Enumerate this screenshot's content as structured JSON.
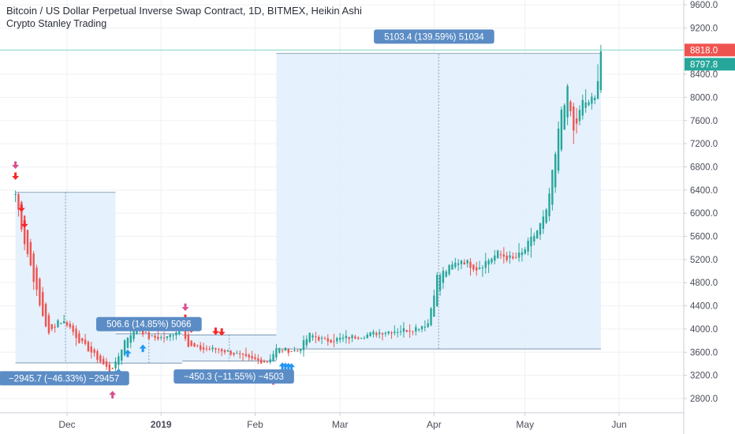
{
  "header": {
    "title": "Bitcoin / US Dollar Perpetual Inverse Swap Contract, 1D, BITMEX, Heikin Ashi",
    "subtitle": "Crypto Stanley Trading"
  },
  "price_tags": {
    "last_price": "8818.0",
    "ha_close": "8797.8"
  },
  "colors": {
    "up": "#26a69a",
    "down": "#ef5350",
    "buy_arrow": "#2196f3",
    "sell_arrow": "#f5282a",
    "special_arrow": "#d94e8f",
    "range_fill": "#e1eefc",
    "range_border": "#6d8aa8",
    "label_bg": "#5b8cc5",
    "grid": "#eef0f3",
    "axis_text": "#4a4e59",
    "last_price_line": "#7fd3c8",
    "last_price_tag": "#ef5350",
    "ha_close_tag": "#26a69a"
  },
  "measurements": [
    {
      "label": "−2945.7 (−46.33%) −29457"
    },
    {
      "label": "506.6 (14.85%) 5066"
    },
    {
      "label": "−450.3 (−11.55%) −4503"
    },
    {
      "label": "5103.4 (139.59%) 51034"
    }
  ],
  "chart_data": {
    "type": "candlestick",
    "style": "Heikin Ashi",
    "interval": "1D",
    "symbol": "BITMEX:XBTUSD",
    "title": "Bitcoin / US Dollar Perpetual Inverse Swap Contract, 1D, BITMEX, Heikin Ashi",
    "ylim": [
      2500,
      9700
    ],
    "y_ticks": [
      "9600.0",
      "9200.0",
      "8400.0",
      "8000.0",
      "7600.0",
      "7200.0",
      "6800.0",
      "6400.0",
      "6000.0",
      "5600.0",
      "5200.0",
      "4800.0",
      "4400.0",
      "4000.0",
      "3600.0",
      "3200.0",
      "2800.0"
    ],
    "x_ticks": [
      "Dec",
      "2019",
      "Feb",
      "Mar",
      "Apr",
      "May",
      "Jun"
    ],
    "grid": true,
    "last_price": 8818.0,
    "ha_close": 8797.8,
    "anchor_points": [
      {
        "date": "2018-11-14",
        "price": 6330
      },
      {
        "date": "2018-11-17",
        "price": 5500
      },
      {
        "date": "2018-11-19",
        "price": 5100
      },
      {
        "date": "2018-11-22",
        "price": 4400
      },
      {
        "date": "2018-11-25",
        "price": 3900
      },
      {
        "date": "2018-11-28",
        "price": 4150
      },
      {
        "date": "2018-12-01",
        "price": 4100
      },
      {
        "date": "2018-12-05",
        "price": 3800
      },
      {
        "date": "2018-12-09",
        "price": 3600
      },
      {
        "date": "2018-12-15",
        "price": 3280
      },
      {
        "date": "2018-12-17",
        "price": 3400
      },
      {
        "date": "2018-12-20",
        "price": 3800
      },
      {
        "date": "2018-12-24",
        "price": 4050
      },
      {
        "date": "2018-12-28",
        "price": 3850
      },
      {
        "date": "2019-01-03",
        "price": 3850
      },
      {
        "date": "2019-01-08",
        "price": 4050
      },
      {
        "date": "2019-01-10",
        "price": 3700
      },
      {
        "date": "2019-01-15",
        "price": 3650
      },
      {
        "date": "2019-01-20",
        "price": 3650
      },
      {
        "date": "2019-01-25",
        "price": 3580
      },
      {
        "date": "2019-01-30",
        "price": 3480
      },
      {
        "date": "2019-02-05",
        "price": 3430
      },
      {
        "date": "2019-02-08",
        "price": 3650
      },
      {
        "date": "2019-02-15",
        "price": 3620
      },
      {
        "date": "2019-02-19",
        "price": 3900
      },
      {
        "date": "2019-02-24",
        "price": 3800
      },
      {
        "date": "2019-03-01",
        "price": 3830
      },
      {
        "date": "2019-03-10",
        "price": 3900
      },
      {
        "date": "2019-03-15",
        "price": 3950
      },
      {
        "date": "2019-03-25",
        "price": 4000
      },
      {
        "date": "2019-03-30",
        "price": 4100
      },
      {
        "date": "2019-04-02",
        "price": 4900
      },
      {
        "date": "2019-04-10",
        "price": 5200
      },
      {
        "date": "2019-04-15",
        "price": 5050
      },
      {
        "date": "2019-04-22",
        "price": 5300
      },
      {
        "date": "2019-04-27",
        "price": 5200
      },
      {
        "date": "2019-04-30",
        "price": 5300
      },
      {
        "date": "2019-05-05",
        "price": 5700
      },
      {
        "date": "2019-05-08",
        "price": 6000
      },
      {
        "date": "2019-05-11",
        "price": 7000
      },
      {
        "date": "2019-05-13",
        "price": 7800
      },
      {
        "date": "2019-05-15",
        "price": 8100
      },
      {
        "date": "2019-05-17",
        "price": 7400
      },
      {
        "date": "2019-05-20",
        "price": 7900
      },
      {
        "date": "2019-05-24",
        "price": 7950
      },
      {
        "date": "2019-05-26",
        "price": 8797.8
      }
    ],
    "measurements": [
      {
        "from_date": "2018-11-14",
        "to_date": "2018-12-17",
        "from_price": 6360,
        "to_price": 3414,
        "change": "−2945.7",
        "percent": "−46.33%",
        "ticks": "−29457"
      },
      {
        "from_date": "2018-12-17",
        "to_date": "2019-01-08",
        "from_price": 3411,
        "to_price": 3918,
        "change": "506.6",
        "percent": "14.85%",
        "ticks": "5066"
      },
      {
        "from_date": "2019-01-08",
        "to_date": "2019-02-08",
        "from_price": 3898,
        "to_price": 3448,
        "change": "−450.3",
        "percent": "−11.55%",
        "ticks": "−4503"
      },
      {
        "from_date": "2019-02-08",
        "to_date": "2019-05-26",
        "from_price": 3656,
        "to_price": 8759,
        "change": "5103.4",
        "percent": "139.59%",
        "ticks": "51034"
      }
    ],
    "signals": [
      {
        "type": "buy",
        "date": "2018-12-18"
      },
      {
        "type": "buy",
        "date": "2018-12-21"
      },
      {
        "type": "buy",
        "date": "2018-12-26"
      },
      {
        "type": "buy",
        "date": "2019-02-10"
      },
      {
        "type": "buy",
        "date": "2019-02-11"
      },
      {
        "type": "buy",
        "date": "2019-02-12"
      },
      {
        "type": "buy",
        "date": "2019-02-13"
      },
      {
        "type": "sell",
        "date": "2018-11-14"
      },
      {
        "type": "sell",
        "date": "2018-11-16"
      },
      {
        "type": "sell",
        "date": "2018-11-17"
      },
      {
        "type": "sell",
        "date": "2019-01-09"
      },
      {
        "type": "sell",
        "date": "2019-01-11"
      },
      {
        "type": "sell",
        "date": "2019-01-19"
      },
      {
        "type": "sell",
        "date": "2019-01-21"
      },
      {
        "type": "special_down",
        "date": "2018-11-14"
      },
      {
        "type": "special_down",
        "date": "2019-01-09"
      },
      {
        "type": "special_up",
        "date": "2018-12-16"
      },
      {
        "type": "special_up",
        "date": "2019-02-07"
      }
    ]
  }
}
